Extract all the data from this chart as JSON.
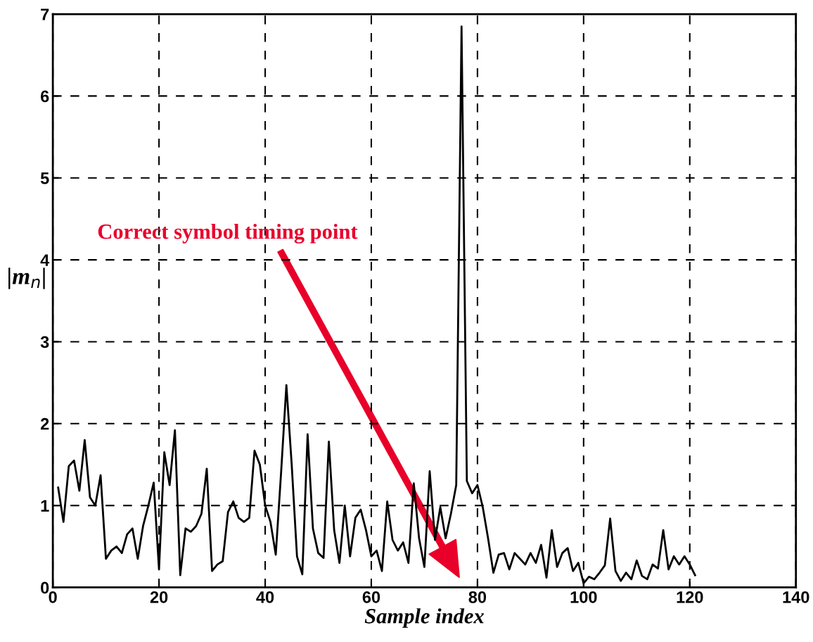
{
  "chart_data": {
    "type": "line",
    "xlabel": "Sample index",
    "ylabel": "|m$_{n}$|",
    "x": [
      1,
      2,
      3,
      4,
      5,
      6,
      7,
      8,
      9,
      10,
      11,
      12,
      13,
      14,
      15,
      16,
      17,
      18,
      19,
      20,
      21,
      22,
      23,
      24,
      25,
      26,
      27,
      28,
      29,
      30,
      31,
      32,
      33,
      34,
      35,
      36,
      37,
      38,
      39,
      40,
      41,
      42,
      43,
      44,
      45,
      46,
      47,
      48,
      49,
      50,
      51,
      52,
      53,
      54,
      55,
      56,
      57,
      58,
      59,
      60,
      61,
      62,
      63,
      64,
      65,
      66,
      67,
      68,
      69,
      70,
      71,
      72,
      73,
      74,
      75,
      76,
      77,
      78,
      79,
      80,
      81,
      82,
      83,
      84,
      85,
      86,
      87,
      88,
      89,
      90,
      91,
      92,
      93,
      94,
      95,
      96,
      97,
      98,
      99,
      100,
      101,
      102,
      103,
      104,
      105,
      106,
      107,
      108,
      109,
      110,
      111,
      112,
      113,
      114,
      115,
      116,
      117,
      118,
      119,
      120,
      121
    ],
    "series": [
      {
        "color": "#000000",
        "values": [
          1.22,
          0.8,
          1.48,
          1.55,
          1.18,
          1.8,
          1.1,
          1.0,
          1.37,
          0.35,
          0.45,
          0.5,
          0.42,
          0.65,
          0.72,
          0.35,
          0.75,
          1.0,
          1.28,
          0.22,
          1.65,
          1.25,
          1.92,
          0.15,
          0.72,
          0.68,
          0.75,
          0.9,
          1.45,
          0.2,
          0.28,
          0.32,
          0.92,
          1.05,
          0.85,
          0.8,
          0.85,
          1.67,
          1.5,
          1.0,
          0.8,
          0.4,
          1.4,
          2.47,
          1.5,
          0.38,
          0.16,
          1.87,
          0.72,
          0.42,
          0.36,
          1.78,
          0.7,
          0.3,
          1.0,
          0.38,
          0.85,
          0.95,
          0.7,
          0.38,
          0.45,
          0.2,
          1.05,
          0.58,
          0.45,
          0.55,
          0.3,
          1.27,
          0.6,
          0.25,
          1.42,
          0.58,
          0.98,
          0.6,
          0.9,
          1.25,
          6.85,
          1.3,
          1.15,
          1.25,
          0.98,
          0.6,
          0.18,
          0.4,
          0.42,
          0.22,
          0.42,
          0.35,
          0.28,
          0.42,
          0.3,
          0.52,
          0.12,
          0.7,
          0.25,
          0.42,
          0.48,
          0.2,
          0.3,
          0.05,
          0.13,
          0.1,
          0.18,
          0.27,
          0.84,
          0.2,
          0.08,
          0.18,
          0.1,
          0.33,
          0.14,
          0.1,
          0.28,
          0.23,
          0.7,
          0.22,
          0.38,
          0.28,
          0.38,
          0.28,
          0.15
        ]
      }
    ],
    "xlim": [
      0,
      140
    ],
    "ylim": [
      0,
      7
    ],
    "xticks": [
      0,
      20,
      40,
      60,
      80,
      100,
      120,
      140
    ],
    "yticks": [
      0,
      1,
      2,
      3,
      4,
      5,
      6,
      7
    ],
    "grid": true,
    "line_style": "solid",
    "marker": "none",
    "annotations": [
      "Correct symbol timing point"
    ]
  }
}
